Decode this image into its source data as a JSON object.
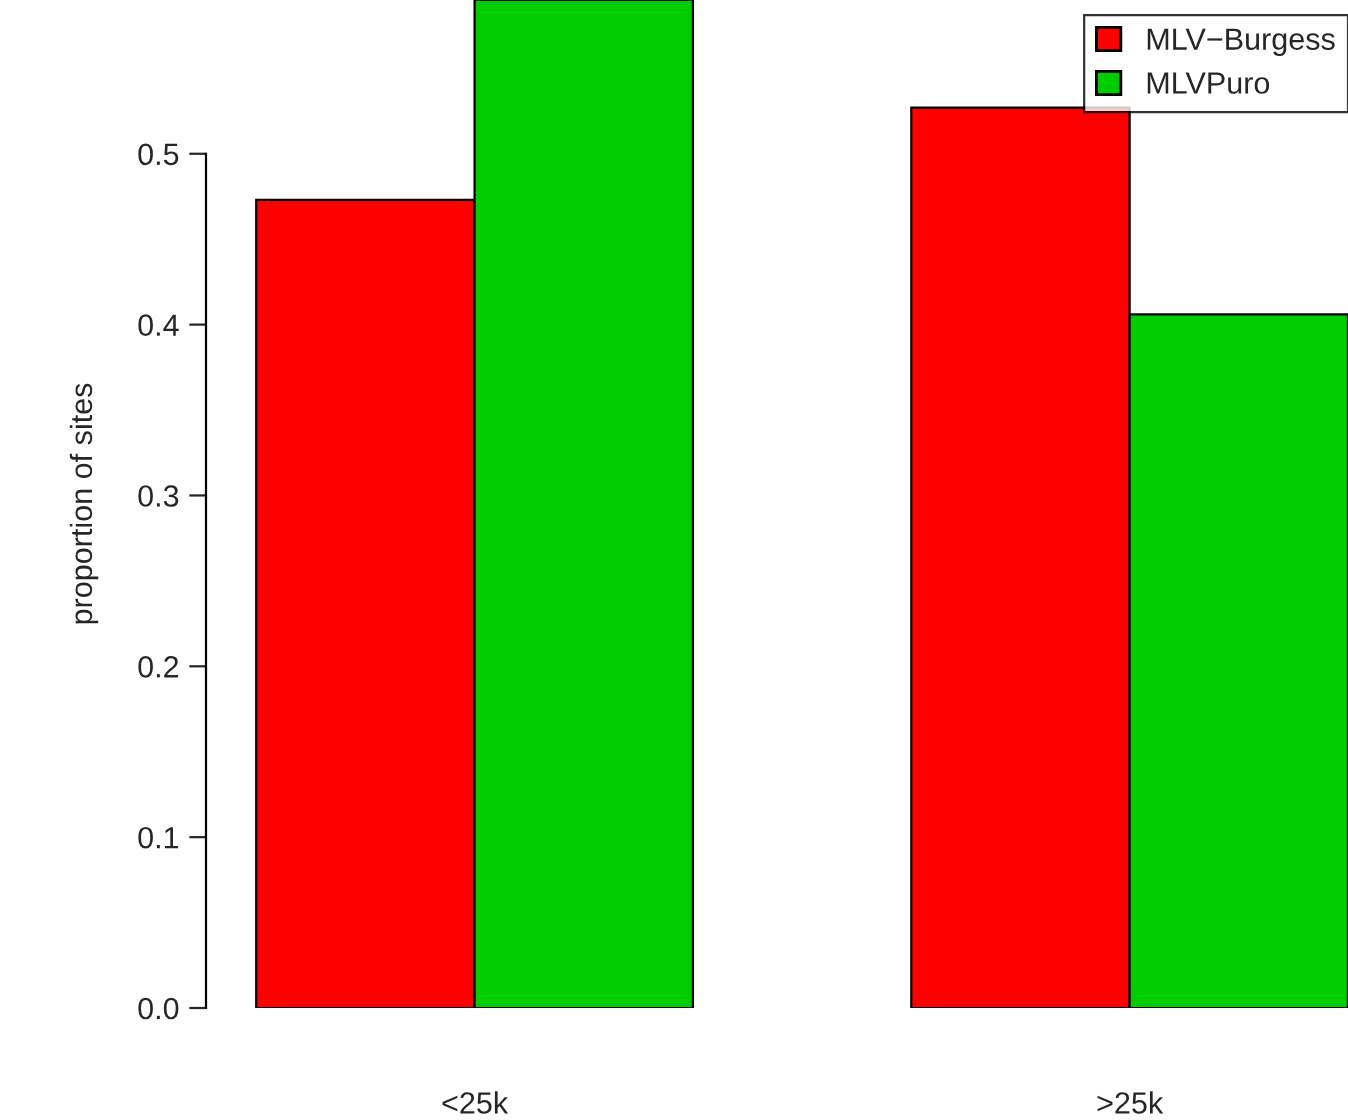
{
  "chart_data": {
    "type": "bar",
    "ylabel": "proportion of sites",
    "categories": [
      "<25k",
      ">25k"
    ],
    "series": [
      {
        "name": "MLV−Burgess",
        "color": "#ff0000",
        "values": [
          0.473,
          0.527
        ]
      },
      {
        "name": "MLVPuro",
        "color": "#00cd00",
        "values": [
          0.59,
          0.406
        ]
      }
    ],
    "ylim": [
      0,
      0.59
    ],
    "yticks": [
      {
        "value": 0,
        "label": "0.0"
      },
      0.1,
      0.2,
      0.3,
      0.4,
      0.5
    ],
    "grid": false,
    "legend": "top right"
  }
}
